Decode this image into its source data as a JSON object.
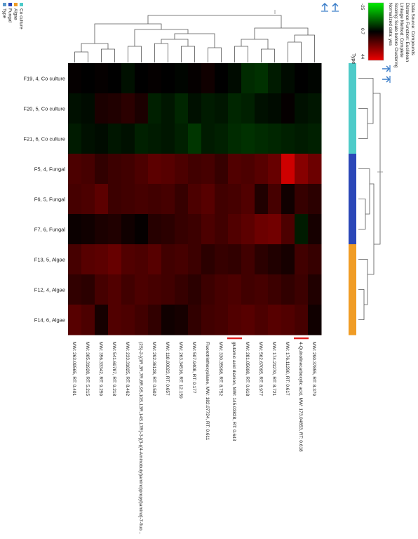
{
  "chart_data": {
    "type": "heatmap",
    "rows": [
      "F19, 4, Co culture",
      "F20, 5, Co culture",
      "F21, 6, Co culture",
      "F5, 4, Fungal",
      "F6, 5, Fungal",
      "F7, 6, Fungal",
      "F13, 5, Algae",
      "F12, 4, Algae",
      "F14, 6, Algae"
    ],
    "row_types": [
      "Co culture",
      "Co culture",
      "Co culture",
      "Fungal",
      "Fungal",
      "Fungal",
      "Algae",
      "Algae",
      "Algae"
    ],
    "columns": [
      "MW: 263.09565, RT: 0.401",
      "MW: 305.31928, RT: 5.215",
      "MW: 356.33342, RT: 9.259",
      "MW: 541.69787, RT: 9.218",
      "MW: 233.31825, RT: 8.462",
      "(2S)-2-[(1R,3R,7R,8R,9S,10S,13R,14S,17R)-3-[(3-((4-Aminobutyl)amino)propyl)amino]-7-fluo...",
      "MW: 292.36128, RT: 0.502",
      "MW: 118.00023, RT: 0.657",
      "MW: 263.34516, RT: 12.159",
      "MW: 507.9408, RT: 0.177",
      "Fluorotriethoxysilane, MW: 182.07724, RT: 0.611",
      "MW: 330.35998, RT: 8.752",
      "glutamic acid dianion, MW: 145.03828, RT: 0.643",
      "MW: 281.05698, RT: 0.618",
      "MW: 562.67095, RT: 8.977",
      "MW: 174.21270, RT: 8.721",
      "MW: 176.11290, RT: 0.617",
      "4-Quinolinecarboxylic acid, MW: 173.04853, RT: 0.618",
      "MW: 290.37855, RT: 8.379"
    ],
    "highlighted_columns": [
      12,
      17
    ],
    "values": [
      [
        0.1,
        0.0,
        0.1,
        0.0,
        -0.3,
        0.0,
        0.1,
        0.0,
        -0.1,
        0.1,
        0.3,
        0.0,
        -0.2,
        -0.8,
        -0.9,
        -0.5,
        -0.2,
        0.0,
        -0.1
      ],
      [
        -0.3,
        -0.2,
        0.5,
        0.6,
        0.8,
        0.5,
        -0.6,
        -0.4,
        -0.7,
        -0.3,
        -0.5,
        -0.4,
        -0.7,
        -0.6,
        -0.3,
        -0.2,
        0.1,
        -0.3,
        -0.4
      ],
      [
        -0.5,
        -0.3,
        -0.2,
        -0.4,
        -0.3,
        -0.6,
        -0.5,
        -0.4,
        -0.6,
        -1.0,
        -0.5,
        -0.6,
        -0.8,
        -0.9,
        -0.8,
        -0.7,
        -0.6,
        -0.5,
        -0.6
      ],
      [
        1.4,
        1.3,
        0.9,
        1.1,
        1.2,
        1.4,
        1.7,
        1.6,
        1.4,
        1.2,
        1.3,
        1.0,
        1.5,
        1.4,
        1.6,
        1.9,
        3.8,
        2.5,
        2.0
      ],
      [
        1.3,
        1.4,
        1.7,
        1.1,
        1.2,
        1.3,
        1.2,
        1.3,
        1.0,
        1.4,
        1.6,
        1.2,
        1.3,
        1.5,
        0.6,
        1.3,
        0.3,
        1.0,
        0.8
      ],
      [
        0.2,
        0.3,
        0.5,
        0.6,
        0.3,
        0.1,
        0.7,
        0.8,
        1.0,
        1.1,
        1.4,
        1.2,
        1.5,
        1.7,
        2.0,
        2.1,
        1.4,
        -0.5,
        0.4
      ],
      [
        1.3,
        1.6,
        1.7,
        1.9,
        1.5,
        1.4,
        1.6,
        1.2,
        1.3,
        1.1,
        0.8,
        1.0,
        0.9,
        1.2,
        0.8,
        0.6,
        0.4,
        1.2,
        1.0
      ],
      [
        0.9,
        0.8,
        1.3,
        1.5,
        1.2,
        1.4,
        1.3,
        1.2,
        1.0,
        0.8,
        1.1,
        1.3,
        1.4,
        1.2,
        1.3,
        1.1,
        0.9,
        1.1,
        0.6
      ],
      [
        1.6,
        1.4,
        0.4,
        1.5,
        1.4,
        1.2,
        0.9,
        0.3,
        0.4,
        0.9,
        1.2,
        1.3,
        1.5,
        1.6,
        1.4,
        1.6,
        1.5,
        1.3,
        0.3
      ]
    ],
    "colorscale": {
      "label": "Normalized data: yes",
      "ticks": [
        "-25",
        "0.7",
        "44"
      ],
      "low_color": "#00ee00",
      "mid_color": "#000000",
      "high_color": "#ee0000"
    },
    "legend": {
      "items": [
        {
          "label": "Type",
          "color": "#5a98c9"
        },
        {
          "label": "Fungal",
          "color": "#2b47b8"
        },
        {
          "label": "Algae",
          "color": "#f09c25"
        },
        {
          "label": "Co culture",
          "color": "#4ecbc9"
        }
      ],
      "placement": "top-left"
    },
    "info_lines": [
      "Data Source: Compounds",
      "Distance Function: Euclidean",
      "Linkage Method: Complete",
      "Scaling: Scale before Clustering",
      "Normalized data: yes"
    ],
    "type_header": "Type"
  }
}
